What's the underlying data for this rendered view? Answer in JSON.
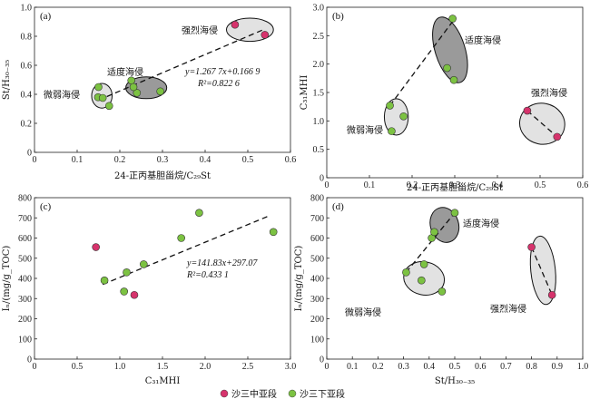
{
  "colors": {
    "upper": "#d6336c",
    "lower": "#7cc242",
    "ellipse_light": "#e2e2e2",
    "ellipse_dark": "#9a9a9a"
  },
  "legend": [
    {
      "name": "沙三中亚段",
      "color": "#d6336c"
    },
    {
      "name": "沙三下亚段",
      "color": "#7cc242"
    }
  ],
  "chart_data": [
    {
      "id": "a",
      "type": "scatter",
      "panel_label": "(a)",
      "xlabel": "24-正丙基胆甾烷/C₂₉St",
      "ylabel": "St/H₃₀₋₃₅",
      "xlim": [
        0,
        0.6
      ],
      "ylim": [
        0,
        1.0
      ],
      "xticks": [
        "0",
        "0.1",
        "0.2",
        "0.3",
        "0.4",
        "0.5",
        "0.6"
      ],
      "yticks": [
        "0",
        "0.2",
        "0.4",
        "0.6",
        "0.8",
        "1.0"
      ],
      "series": [
        {
          "name": "沙三中亚段",
          "points": [
            [
              0.47,
              0.88
            ],
            [
              0.54,
              0.81
            ]
          ]
        },
        {
          "name": "沙三下亚段",
          "points": [
            [
              0.15,
              0.45
            ],
            [
              0.149,
              0.38
            ],
            [
              0.16,
              0.375
            ],
            [
              0.175,
              0.32
            ],
            [
              0.227,
              0.495
            ],
            [
              0.24,
              0.41
            ],
            [
              0.295,
              0.42
            ],
            [
              0.232,
              0.45
            ]
          ]
        }
      ],
      "trendline": [
        [
          0.15,
          0.36
        ],
        [
          0.54,
          0.85
        ]
      ],
      "equation": "y=1.267 7x+0.166 9",
      "r2": "R²=0.822 6",
      "zones": [
        {
          "label": "微弱海侵",
          "ellipse": [
            0.158,
            0.39,
            0.024,
            0.085,
            0
          ],
          "shade": "light"
        },
        {
          "label": "适度海侵",
          "ellipse": [
            0.262,
            0.445,
            0.048,
            0.075,
            0
          ],
          "shade": "dark"
        },
        {
          "label": "强烈海侵",
          "ellipse": [
            0.505,
            0.845,
            0.055,
            0.08,
            0
          ],
          "shade": "light"
        }
      ]
    },
    {
      "id": "b",
      "type": "scatter",
      "panel_label": "(b)",
      "xlabel": "24-正丙基胆甾烷/C₂₉St",
      "ylabel": "C₃₁MHI",
      "xlim": [
        0,
        0.6
      ],
      "ylim": [
        0,
        3.0
      ],
      "xticks": [
        "0",
        "0.1",
        "0.2",
        "0.3",
        "0.4",
        "0.5",
        "0.6"
      ],
      "yticks": [
        "0",
        "0.5",
        "1.0",
        "1.5",
        "2.0",
        "2.5",
        "3.0"
      ],
      "series": [
        {
          "name": "沙三中亚段",
          "points": [
            [
              0.47,
              1.18
            ],
            [
              0.54,
              0.72
            ]
          ]
        },
        {
          "name": "沙三下亚段",
          "points": [
            [
              0.148,
              1.27
            ],
            [
              0.18,
              1.08
            ],
            [
              0.152,
              0.82
            ],
            [
              0.282,
              1.93
            ],
            [
              0.298,
              1.72
            ],
            [
              0.295,
              2.8
            ]
          ]
        }
      ],
      "segments": [
        [
          [
            0.148,
            1.27
          ],
          [
            0.3,
            2.8
          ]
        ],
        [
          [
            0.47,
            1.18
          ],
          [
            0.54,
            0.72
          ]
        ]
      ],
      "zones": [
        {
          "label": "微弱海侵",
          "ellipse": [
            0.163,
            1.07,
            0.028,
            0.32,
            0
          ],
          "shade": "light"
        },
        {
          "label": "适度海侵",
          "ellipse": [
            0.289,
            2.25,
            0.035,
            0.6,
            0.3
          ],
          "shade": "dark"
        },
        {
          "label": "强烈海侵",
          "ellipse": [
            0.505,
            0.95,
            0.053,
            0.36,
            -0.2
          ],
          "shade": "light"
        }
      ]
    },
    {
      "id": "c",
      "type": "scatter",
      "panel_label": "(c)",
      "xlabel": "C₃₁MHI",
      "ylabel": "Iₙ/(mg/g_TOC)",
      "xlim": [
        0,
        3.0
      ],
      "ylim": [
        0,
        800
      ],
      "xticks": [
        "0",
        "0.5",
        "1.0",
        "1.5",
        "2.0",
        "2.5",
        "3.0"
      ],
      "yticks": [
        "0",
        "100",
        "200",
        "300",
        "400",
        "500",
        "600",
        "700",
        "800"
      ],
      "series": [
        {
          "name": "沙三中亚段",
          "points": [
            [
              0.72,
              555
            ],
            [
              1.17,
              318
            ]
          ]
        },
        {
          "name": "沙三下亚段",
          "points": [
            [
              0.82,
              390
            ],
            [
              1.08,
              430
            ],
            [
              1.05,
              335
            ],
            [
              1.28,
              470
            ],
            [
              1.72,
              600
            ],
            [
              1.93,
              725
            ],
            [
              2.8,
              630
            ]
          ]
        }
      ],
      "trendline": [
        [
          0.8,
          370
        ],
        [
          2.75,
          710
        ]
      ],
      "equation": "y=141.83x+297.07",
      "r2": "R²=0.433 1"
    },
    {
      "id": "d",
      "type": "scatter",
      "panel_label": "(d)",
      "xlabel": "St/H₃₀₋₃₅",
      "ylabel": "Iₙ/(mg/g_TOC)",
      "xlim": [
        0,
        1.0
      ],
      "ylim": [
        0,
        800
      ],
      "xticks": [
        "0",
        "0.1",
        "0.2",
        "0.3",
        "0.4",
        "0.5",
        "0.6",
        "0.7",
        "0.8",
        "0.9",
        "1.0"
      ],
      "yticks": [
        "0",
        "100",
        "200",
        "300",
        "400",
        "500",
        "600",
        "700",
        "800"
      ],
      "series": [
        {
          "name": "沙三中亚段",
          "points": [
            [
              0.8,
              555
            ],
            [
              0.88,
              318
            ]
          ]
        },
        {
          "name": "沙三下亚段",
          "points": [
            [
              0.31,
              430
            ],
            [
              0.37,
              390
            ],
            [
              0.38,
              470
            ],
            [
              0.45,
              335
            ],
            [
              0.41,
              600
            ],
            [
              0.42,
              630
            ],
            [
              0.5,
              725
            ]
          ]
        }
      ],
      "segments": [
        [
          [
            0.31,
            430
          ],
          [
            0.5,
            725
          ]
        ],
        [
          [
            0.8,
            555
          ],
          [
            0.88,
            318
          ]
        ]
      ],
      "zones": [
        {
          "label": "微弱海侵",
          "ellipse": [
            0.38,
            400,
            0.08,
            82,
            -0.2
          ],
          "shade": "light"
        },
        {
          "label": "适度海侵",
          "ellipse": [
            0.46,
            665,
            0.055,
            88,
            0.3
          ],
          "shade": "dark"
        },
        {
          "label": "强烈海侵",
          "ellipse": [
            0.845,
            440,
            0.048,
            170,
            0.1
          ],
          "shade": "light"
        }
      ]
    }
  ]
}
